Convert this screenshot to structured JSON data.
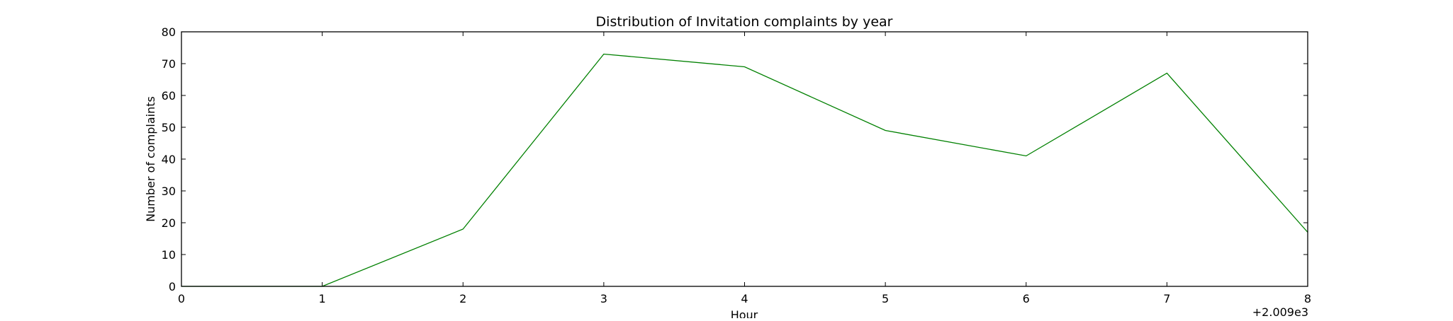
{
  "chart_data": {
    "type": "line",
    "title": "Distribution of  Invitation complaints by year",
    "xlabel": "Hour",
    "ylabel": "Number of complaints",
    "x_offset_text": "+2.009e3",
    "xlim": [
      0,
      8
    ],
    "ylim": [
      0,
      80
    ],
    "x_ticks": [
      "0",
      "1",
      "2",
      "3",
      "4",
      "5",
      "6",
      "7",
      "8"
    ],
    "y_ticks": [
      "0",
      "10",
      "20",
      "30",
      "40",
      "50",
      "60",
      "70",
      "80"
    ],
    "grid": false,
    "legend": "none",
    "series": [
      {
        "color": "#008000",
        "x": [
          0,
          1,
          2,
          3,
          4,
          5,
          6,
          7,
          8
        ],
        "y": [
          0,
          0,
          18,
          73,
          69,
          49,
          41,
          67,
          17
        ]
      }
    ]
  }
}
